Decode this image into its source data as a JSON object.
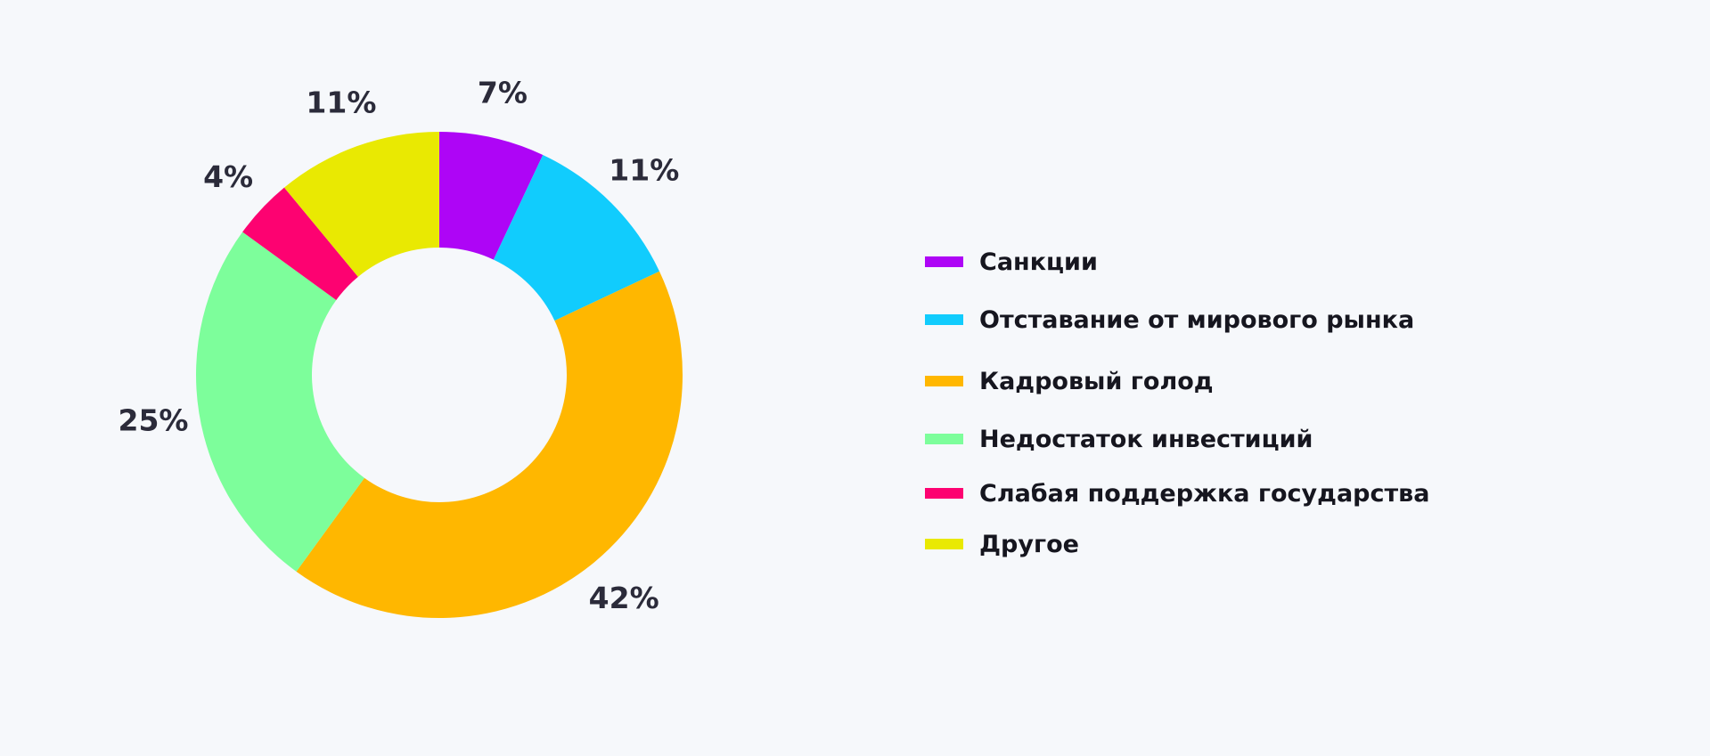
{
  "chart_data": {
    "type": "pie",
    "donut": true,
    "categories": [
      "Санкции",
      "Отставание от мирового рынка",
      "Кадровый голод",
      "Недостаток инвестиций",
      "Слабая поддержка государства",
      "Другое"
    ],
    "values": [
      7,
      11,
      42,
      25,
      4,
      11
    ],
    "value_labels": [
      "7%",
      "11%",
      "42%",
      "25%",
      "4%",
      "11%"
    ],
    "colors": [
      "#ae05f6",
      "#11ccfd",
      "#ffb700",
      "#7dfe9b",
      "#fd0271",
      "#e9e902"
    ],
    "legend_position": "right",
    "title": "",
    "start_angle": "top",
    "direction": "clockwise"
  },
  "legend": {
    "items": [
      {
        "label": "Санкции",
        "color": "#ae05f6"
      },
      {
        "label": "Отставание от мирового рынка",
        "color": "#11ccfd"
      },
      {
        "label": "Кадровый голод",
        "color": "#ffb700"
      },
      {
        "label": "Недостаток инвестиций",
        "color": "#7dfe9b"
      },
      {
        "label": "Слабая поддержка государства",
        "color": "#fd0271"
      },
      {
        "label": "Другое",
        "color": "#e9e902"
      }
    ]
  }
}
